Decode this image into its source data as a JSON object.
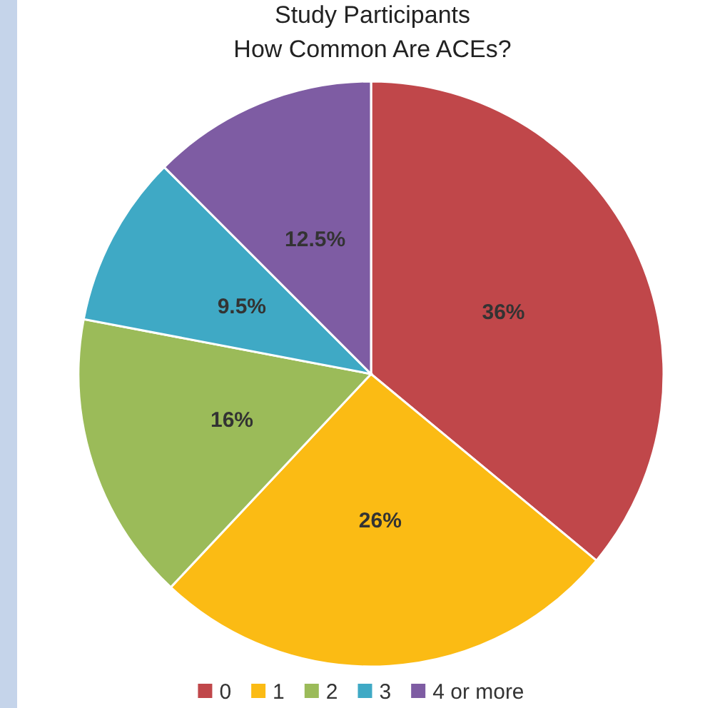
{
  "chart_data": {
    "type": "pie",
    "title": "Study Participants",
    "subtitle": "How Common Are ACEs?",
    "categories": [
      "0",
      "1",
      "2",
      "3",
      "4 or more"
    ],
    "values": [
      36,
      26,
      16,
      9.5,
      12.5
    ],
    "colors": [
      "#c0474a",
      "#fbbb14",
      "#9bbb59",
      "#3fa9c5",
      "#7e5ca3"
    ],
    "value_labels": [
      "36%",
      "26%",
      "16%",
      "9.5%",
      "12.5%"
    ],
    "legend": "bottom"
  }
}
